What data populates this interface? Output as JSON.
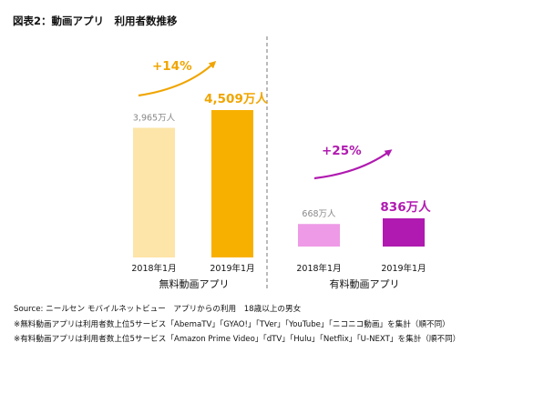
{
  "title": "図表2：動画アプリ　利用者数推移",
  "chart_data": [
    {
      "type": "bar",
      "xlabel": "無料動画アプリ",
      "categories": [
        "2018年1月",
        "2019年1月"
      ],
      "values": [
        3965,
        4509
      ],
      "value_labels": [
        "3,965万人",
        "4,509万人"
      ],
      "unit": "万人",
      "growth_label": "+14%",
      "colors": [
        "#fde4a8",
        "#f8b000"
      ],
      "label_colors": [
        "#888888",
        "#f0a500"
      ],
      "arrow_color": "#f0a500"
    },
    {
      "type": "bar",
      "xlabel": "有料動画アプリ",
      "categories": [
        "2018年1月",
        "2019年1月"
      ],
      "values": [
        668,
        836
      ],
      "value_labels": [
        "668万人",
        "836万人"
      ],
      "unit": "万人",
      "growth_label": "+25%",
      "colors": [
        "#ee9ae6",
        "#b01ab0"
      ],
      "label_colors": [
        "#888888",
        "#b01ab0"
      ],
      "arrow_color": "#b01ab0"
    }
  ],
  "notes": [
    "Source: ニールセン モバイルネットビュー　アプリからの利用　18歳以上の男女",
    "※無料動画アプリは利用者数上位5サービス「AbemaTV」「GYAO!」「TVer」「YouTube」「ニコニコ動画」を集計（順不同）",
    "※有料動画アプリは利用者数上位5サービス「Amazon Prime Video」「dTV」「Hulu」「Netflix」「U-NEXT」を集計（順不同）"
  ]
}
